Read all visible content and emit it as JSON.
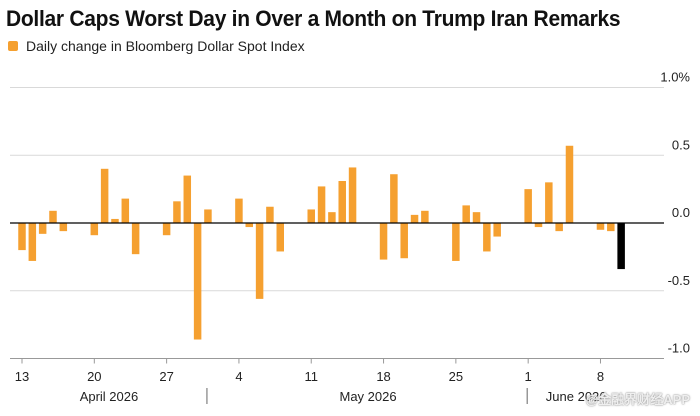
{
  "watermark": "@金融界财经APP",
  "colors": {
    "bar": "#F5A030",
    "last_bar": "#000000",
    "grid": "#D9D9D9",
    "zero": "#000000",
    "text": "#222222"
  },
  "chart_data": {
    "type": "bar",
    "title": "Dollar Caps Worst Day in Over a Month on Trump Iran Remarks",
    "legend": [
      "Daily change in Bloomberg Dollar Spot Index"
    ],
    "ylim": [
      -1.0,
      1.0
    ],
    "grid": true,
    "legend_position": "top-left",
    "yticks": [
      "1.0%",
      "0.5",
      "0.0",
      "-0.5",
      "-1.0"
    ],
    "ytick_values": [
      1.0,
      0.5,
      0.0,
      -0.5,
      -1.0
    ],
    "xticks": [
      {
        "label": "13",
        "date": "2026-04-13"
      },
      {
        "label": "20",
        "date": "2026-04-20"
      },
      {
        "label": "27",
        "date": "2026-04-27"
      },
      {
        "label": "4",
        "date": "2026-05-04"
      },
      {
        "label": "11",
        "date": "2026-05-11"
      },
      {
        "label": "18",
        "date": "2026-05-18"
      },
      {
        "label": "25",
        "date": "2026-05-25"
      },
      {
        "label": "1",
        "date": "2026-06-01"
      },
      {
        "label": "8",
        "date": "2026-06-08"
      }
    ],
    "months": [
      {
        "label": "April 2026",
        "start": "2026-04-10",
        "end": "2026-05-01"
      },
      {
        "label": "May 2026",
        "start": "2026-05-01",
        "end": "2026-06-01"
      },
      {
        "label": "June 2026",
        "start": "2026-06-01",
        "end": "2026-06-10"
      }
    ],
    "series": [
      {
        "name": "Daily change in Bloomberg Dollar Spot Index",
        "x": [
          "2026-04-13",
          "2026-04-14",
          "2026-04-15",
          "2026-04-16",
          "2026-04-17",
          "2026-04-20",
          "2026-04-21",
          "2026-04-22",
          "2026-04-23",
          "2026-04-24",
          "2026-04-27",
          "2026-04-28",
          "2026-04-29",
          "2026-04-30",
          "2026-05-01",
          "2026-05-04",
          "2026-05-05",
          "2026-05-06",
          "2026-05-07",
          "2026-05-08",
          "2026-05-11",
          "2026-05-12",
          "2026-05-13",
          "2026-05-14",
          "2026-05-15",
          "2026-05-18",
          "2026-05-19",
          "2026-05-20",
          "2026-05-21",
          "2026-05-22",
          "2026-05-25",
          "2026-05-26",
          "2026-05-27",
          "2026-05-28",
          "2026-05-29",
          "2026-06-01",
          "2026-06-02",
          "2026-06-03",
          "2026-06-04",
          "2026-06-05",
          "2026-06-08",
          "2026-06-09",
          "2026-06-10"
        ],
        "values": [
          -0.2,
          -0.28,
          -0.08,
          0.09,
          -0.06,
          -0.09,
          0.4,
          0.03,
          0.18,
          -0.23,
          -0.09,
          0.16,
          0.35,
          -0.86,
          0.1,
          0.18,
          -0.03,
          -0.56,
          0.12,
          -0.21,
          0.1,
          0.27,
          0.08,
          0.31,
          0.41,
          -0.27,
          0.36,
          -0.26,
          0.06,
          0.09,
          -0.28,
          0.13,
          0.08,
          -0.21,
          -0.1,
          0.25,
          -0.03,
          0.3,
          -0.06,
          0.57,
          -0.05,
          -0.06,
          -0.34
        ]
      }
    ]
  }
}
